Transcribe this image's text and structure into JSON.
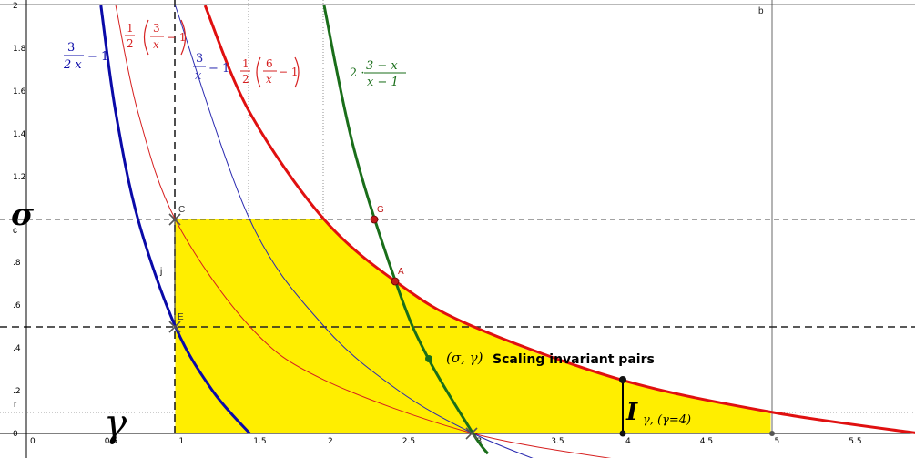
{
  "chart_data": {
    "type": "line",
    "title": "",
    "xlabel": "",
    "ylabel": "",
    "xlim": [
      -0.2,
      6.0
    ],
    "ylim": [
      -0.1,
      2.05
    ],
    "grid": "partial",
    "x_ticks": [
      "0",
      "0.5",
      "1",
      "1.5",
      "2",
      "2.5",
      "3",
      "3.5",
      "4",
      "4.5",
      "5",
      "5.5"
    ],
    "y_ticks": [
      "0",
      ".2",
      ".4",
      ".6",
      ".8",
      "1.2",
      "1.4",
      "1.6",
      "1.8",
      "2"
    ],
    "series": [
      {
        "name": "3/(2x) - 1",
        "color": "#0a0aa8",
        "width": 3,
        "x": [
          0.5,
          0.6,
          0.75,
          1,
          1.25,
          1.5
        ],
        "y": [
          2.0,
          1.5,
          1.0,
          0.5,
          0.2,
          0.0
        ]
      },
      {
        "name": "1/2 (3/x - 1)",
        "color": "#d62020",
        "width": 1,
        "x": [
          0.6,
          0.75,
          1,
          1.5,
          2,
          3,
          4
        ],
        "y": [
          2.0,
          1.5,
          1.0,
          0.5,
          0.25,
          0.0,
          -0.125
        ]
      },
      {
        "name": "3/x - 1",
        "color": "#2a2ab0",
        "width": 1,
        "x": [
          1,
          1.5,
          2,
          2.5,
          3,
          3.5
        ],
        "y": [
          2.0,
          1.0,
          0.5,
          0.2,
          0.0,
          -0.143
        ]
      },
      {
        "name": "1/2 (6/x - 1)",
        "color": "#e01010",
        "width": 3,
        "x": [
          1.2,
          1.5,
          2,
          2.5,
          3,
          4,
          5,
          6
        ],
        "y": [
          2.0,
          1.5,
          1.0,
          0.7,
          0.5,
          0.25,
          0.1,
          0.0
        ]
      },
      {
        "name": "2 · (3 - x)/(x - 1)",
        "color": "#1a6e1a",
        "width": 3,
        "x": [
          2.0,
          2.2,
          2.5,
          2.7,
          3.0,
          3.1
        ],
        "y": [
          2.0,
          1.33,
          0.67,
          0.35,
          0.0,
          -0.095
        ]
      }
    ],
    "points": [
      {
        "label": "C",
        "x": 1.0,
        "y": 1.0
      },
      {
        "label": "E",
        "x": 1.0,
        "y": 0.5
      },
      {
        "label": "G",
        "x": 2.333,
        "y": 1.0
      },
      {
        "label": "A",
        "x": 2.5,
        "y": 0.7
      },
      {
        "label": "b",
        "x": 5.0,
        "y": 2.0
      }
    ],
    "annotations": {
      "sigma": "σ",
      "gamma": "γ",
      "pairs_math": "(σ, γ)",
      "pairs_text": "Scaling invariant pairs",
      "interval": "I",
      "interval_sub": "γ, (γ=4)",
      "c": "c",
      "r": "r",
      "j": "j"
    },
    "curve_labels": {
      "blue_thick": {
        "num": "3",
        "den": "2 x",
        "tail": "− 1"
      },
      "red_thin": {
        "half_num": "1",
        "half_den": "2",
        "num": "3",
        "den": "x",
        "tail": "− 1"
      },
      "blue_thin": {
        "num": "3",
        "den": "x",
        "tail": "− 1"
      },
      "red_thick": {
        "half_num": "1",
        "half_den": "2",
        "num": "6",
        "den": "x",
        "tail": "− 1"
      },
      "green": {
        "coef": "2 ·",
        "num": "3 − x",
        "den": "x − 1"
      }
    }
  }
}
